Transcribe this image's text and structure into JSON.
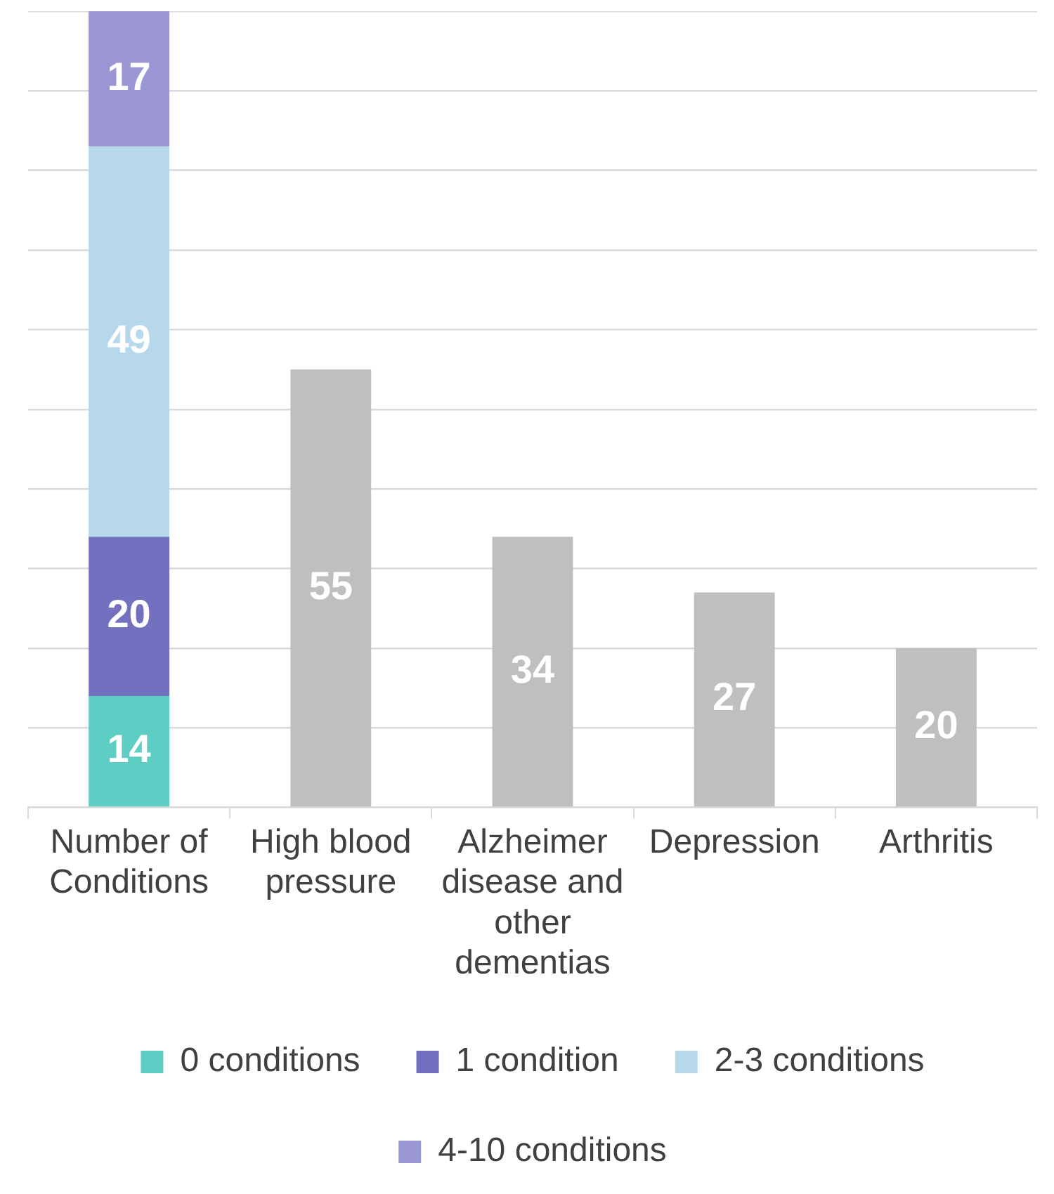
{
  "chart_data": {
    "type": "bar",
    "stacked": true,
    "categories": [
      "Number of Conditions",
      "High blood pressure",
      "Alzheimer disease and other dementias",
      "Depression",
      "Arthritis"
    ],
    "series": [
      {
        "name": "0 conditions",
        "color": "#5ecdc4",
        "values": [
          14,
          null,
          null,
          null,
          null
        ]
      },
      {
        "name": "1 condition",
        "color": "#7470c0",
        "values": [
          20,
          null,
          null,
          null,
          null
        ]
      },
      {
        "name": "2-3 conditions",
        "color": "#b7d8ea",
        "values": [
          49,
          null,
          null,
          null,
          null
        ]
      },
      {
        "name": "4-10 conditions",
        "color": "#9a95d3",
        "values": [
          17,
          null,
          null,
          null,
          null
        ]
      },
      {
        "color": "#bfbfbf",
        "values": [
          null,
          55,
          34,
          27,
          20
        ]
      }
    ],
    "ylim": [
      0,
      100
    ],
    "yticks": [
      {
        "value": 0,
        "label": null
      },
      {
        "value": 10,
        "label": null
      },
      {
        "value": 20,
        "label": null
      },
      {
        "value": 30,
        "label": null
      },
      {
        "value": 40,
        "label": null
      },
      {
        "value": 50,
        "label": null
      },
      {
        "value": 60,
        "label": null
      },
      {
        "value": 70,
        "label": null
      },
      {
        "value": 80,
        "label": null
      },
      {
        "value": 90,
        "label": null
      },
      {
        "value": 100,
        "label": null
      }
    ],
    "tick_labels": "x",
    "grid": "y",
    "legend": "bottom",
    "data_labels": true
  }
}
